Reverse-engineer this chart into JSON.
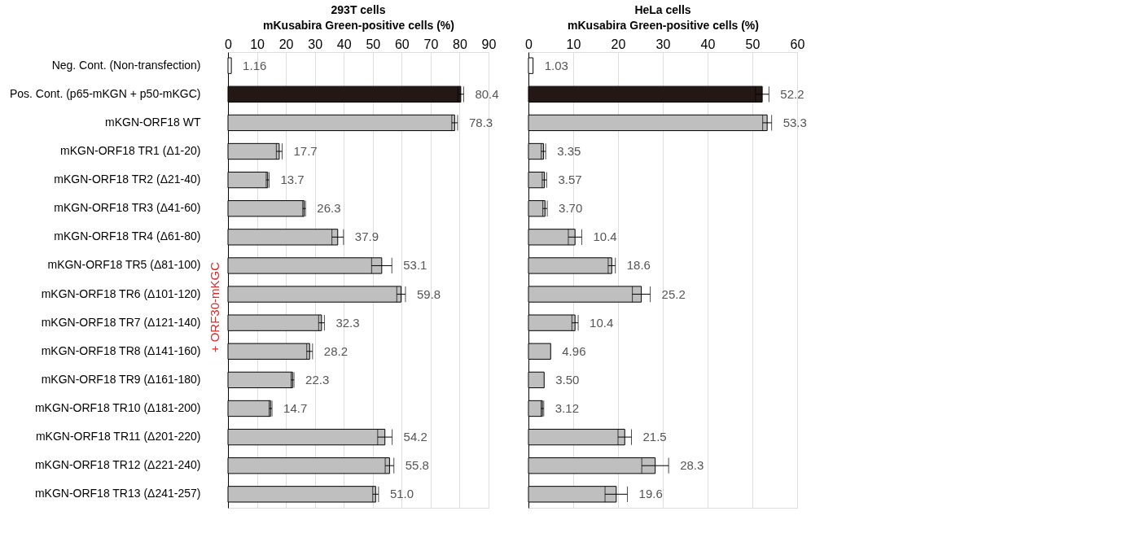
{
  "chart_data": [
    {
      "type": "bar",
      "orientation": "horizontal",
      "title": "293T cells",
      "xlabel": "mKusabira Green-positive cells (%)",
      "categories": [
        "Neg. Cont. (Non-transfection)",
        "Pos. Cont. (p65-mKGN + p50-mKGC)",
        "mKGN-ORF18 WT",
        "mKGN-ORF18 TR1 (Δ1-20)",
        "mKGN-ORF18 TR2 (Δ21-40)",
        "mKGN-ORF18 TR3 (Δ41-60)",
        "mKGN-ORF18 TR4 (Δ61-80)",
        "mKGN-ORF18 TR5 (Δ81-100)",
        "mKGN-ORF18 TR6 (Δ101-120)",
        "mKGN-ORF18 TR7 (Δ121-140)",
        "mKGN-ORF18 TR8 (Δ141-160)",
        "mKGN-ORF18 TR9 (Δ161-180)",
        "mKGN-ORF18 TR10 (Δ181-200)",
        "mKGN-ORF18 TR11 (Δ201-220)",
        "mKGN-ORF18 TR12 (Δ221-240)",
        "mKGN-ORF18 TR13 (Δ241-257)"
      ],
      "values": [
        1.16,
        80.4,
        78.3,
        17.7,
        13.7,
        26.3,
        37.9,
        53.1,
        59.8,
        32.3,
        28.2,
        22.3,
        14.7,
        54.2,
        55.8,
        51.0
      ],
      "value_labels": [
        "1.16",
        "80.4",
        "78.3",
        "17.7",
        "13.7",
        "26.3",
        "37.9",
        "53.1",
        "59.8",
        "32.3",
        "28.2",
        "22.3",
        "14.7",
        "54.2",
        "55.8",
        "51.0"
      ],
      "errors": [
        null,
        1,
        1,
        1,
        0.5,
        0.5,
        2,
        3.5,
        1.5,
        1,
        1,
        0.5,
        0.5,
        2.5,
        1.5,
        1
      ],
      "colors": [
        "#ffffff",
        "#231815",
        "#bfbfbf",
        "#bfbfbf",
        "#bfbfbf",
        "#bfbfbf",
        "#bfbfbf",
        "#bfbfbf",
        "#bfbfbf",
        "#bfbfbf",
        "#bfbfbf",
        "#bfbfbf",
        "#bfbfbf",
        "#bfbfbf",
        "#bfbfbf",
        "#bfbfbf"
      ],
      "xlim": [
        0,
        90
      ],
      "xticks": [
        0,
        10,
        20,
        30,
        40,
        50,
        60,
        70,
        80,
        90
      ],
      "grid": "x",
      "annotations": [
        "+ ORF30-mKGC"
      ]
    },
    {
      "type": "bar",
      "orientation": "horizontal",
      "title": "HeLa cells",
      "xlabel": "mKusabira Green-positive cells (%)",
      "categories": [
        null,
        null,
        null,
        null,
        null,
        null,
        null,
        null,
        null,
        null,
        null,
        null,
        null,
        null,
        null,
        null
      ],
      "values": [
        1.03,
        52.2,
        53.3,
        3.35,
        3.57,
        3.7,
        10.4,
        18.6,
        25.2,
        10.4,
        4.96,
        3.5,
        3.12,
        21.5,
        28.3,
        19.6
      ],
      "value_labels": [
        "1.03",
        "52.2",
        "53.3",
        "3.35",
        "3.57",
        "3.70",
        "10.4",
        "18.6",
        "25.2",
        "10.4",
        "4.96",
        "3.50",
        "3.12",
        "21.5",
        "28.3",
        "19.6"
      ],
      "errors": [
        null,
        1.5,
        1,
        0.5,
        0.5,
        0.5,
        1.5,
        0.8,
        2,
        0.7,
        null,
        null,
        0.3,
        1.5,
        3,
        2.5
      ],
      "colors": [
        "#ffffff",
        "#231815",
        "#bfbfbf",
        "#bfbfbf",
        "#bfbfbf",
        "#bfbfbf",
        "#bfbfbf",
        "#bfbfbf",
        "#bfbfbf",
        "#bfbfbf",
        "#bfbfbf",
        "#bfbfbf",
        "#bfbfbf",
        "#bfbfbf",
        "#bfbfbf",
        "#bfbfbf"
      ],
      "xlim": [
        0,
        60
      ],
      "xticks": [
        0,
        10,
        20,
        30,
        40,
        50,
        60
      ],
      "grid": "x",
      "tick_labels": "x"
    }
  ]
}
